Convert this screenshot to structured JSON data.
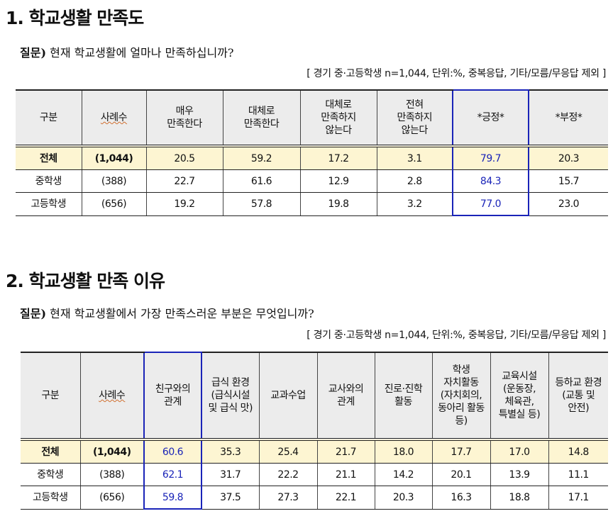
{
  "section1": {
    "heading": "1. 학교생활 만족도",
    "question_label": "질문)",
    "question": "현재 학교생활에 얼마나 만족하십니까?",
    "note": "[ 경기 중·고등학생 n=1,044, 단위:%, 중복응답, 기타/모름/무응답 제외 ]",
    "headers": [
      "구분",
      "사례수",
      "매우\n만족한다",
      "대체로\n만족한다",
      "대체로\n만족하지\n않는다",
      "전혀\n만족하지\n않는다",
      "*긍정*",
      "*부정*"
    ],
    "highlight_column": 6,
    "rows": [
      [
        "전체",
        "(1,044)",
        "20.5",
        "59.2",
        "17.2",
        "3.1",
        "79.7",
        "20.3"
      ],
      [
        "중학생",
        "(388)",
        "22.7",
        "61.6",
        "12.9",
        "2.8",
        "84.3",
        "15.7"
      ],
      [
        "고등학생",
        "(656)",
        "19.2",
        "57.8",
        "19.8",
        "3.2",
        "77.0",
        "23.0"
      ]
    ]
  },
  "section2": {
    "heading": "2. 학교생활 만족 이유",
    "question_label": "질문)",
    "question": "현재 학교생활에서 가장 만족스러운 부분은 무엇입니까?",
    "note": "[ 경기 중·고등학생 n=1,044, 단위:%, 중복응답, 기타/모름/무응답 제외 ]",
    "headers": [
      "구분",
      "사례수",
      "친구와의\n관계",
      "급식 환경\n(급식시설\n및 급식 맛)",
      "교과수업",
      "교사와의\n관계",
      "진로·진학\n활동",
      "학생\n자치활동\n(자치회의,\n동아리 활동\n등)",
      "교육시설\n(운동장,\n체육관,\n특별실 등)",
      "등하교 환경\n(교통 및\n안전)"
    ],
    "highlight_column": 2,
    "rows": [
      [
        "전체",
        "(1,044)",
        "60.6",
        "35.3",
        "25.4",
        "21.7",
        "18.0",
        "17.7",
        "17.0",
        "14.8"
      ],
      [
        "중학생",
        "(388)",
        "62.1",
        "31.7",
        "22.2",
        "21.1",
        "14.2",
        "20.1",
        "13.9",
        "11.1"
      ],
      [
        "고등학생",
        "(656)",
        "59.8",
        "37.5",
        "27.3",
        "22.1",
        "20.3",
        "16.3",
        "18.8",
        "17.1"
      ]
    ]
  },
  "colors": {
    "highlight": "#1a24b8",
    "header_bg": "#ececec",
    "total_row_bg": "#fdf5d2"
  }
}
